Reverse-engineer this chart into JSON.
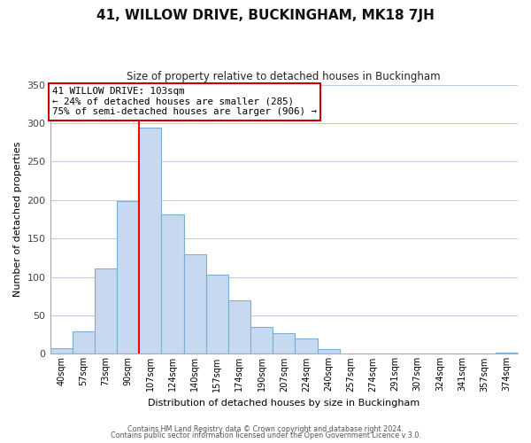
{
  "title": "41, WILLOW DRIVE, BUCKINGHAM, MK18 7JH",
  "subtitle": "Size of property relative to detached houses in Buckingham",
  "xlabel": "Distribution of detached houses by size in Buckingham",
  "ylabel": "Number of detached properties",
  "bin_labels": [
    "40sqm",
    "57sqm",
    "73sqm",
    "90sqm",
    "107sqm",
    "124sqm",
    "140sqm",
    "157sqm",
    "174sqm",
    "190sqm",
    "207sqm",
    "224sqm",
    "240sqm",
    "257sqm",
    "274sqm",
    "291sqm",
    "307sqm",
    "324sqm",
    "341sqm",
    "357sqm",
    "374sqm"
  ],
  "bar_heights": [
    7,
    29,
    111,
    199,
    294,
    181,
    130,
    103,
    70,
    35,
    27,
    20,
    6,
    0,
    0,
    0,
    0,
    0,
    0,
    0,
    2
  ],
  "bar_color": "#c6d9f0",
  "bar_edge_color": "#7bafd4",
  "property_line_color": "#ff0000",
  "annotation_line1": "41 WILLOW DRIVE: 103sqm",
  "annotation_line2": "← 24% of detached houses are smaller (285)",
  "annotation_line3": "75% of semi-detached houses are larger (906) →",
  "annotation_box_color": "#ffffff",
  "annotation_box_edge": "#cc0000",
  "ylim": [
    0,
    350
  ],
  "yticks": [
    0,
    50,
    100,
    150,
    200,
    250,
    300,
    350
  ],
  "footer1": "Contains HM Land Registry data © Crown copyright and database right 2024.",
  "footer2": "Contains public sector information licensed under the Open Government Licence v 3.0.",
  "background_color": "#ffffff",
  "grid_color": "#b8cce4"
}
